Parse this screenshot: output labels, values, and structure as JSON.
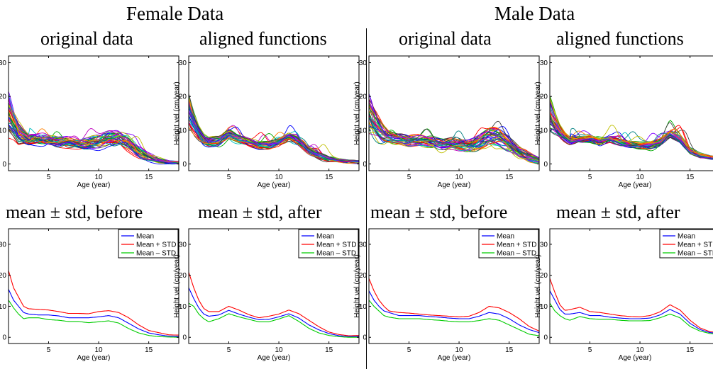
{
  "groups": [
    {
      "title": "Female Data"
    },
    {
      "title": "Male Data"
    }
  ],
  "panel_titles": {
    "original": "original data",
    "aligned": "aligned functions",
    "before": "mean ± std, before",
    "after": "mean ± std, after"
  },
  "legend_labels": [
    "Mean",
    "Mean + STD",
    "Mean – STD"
  ],
  "colors": {
    "mean": "#0000ff",
    "plus": "#ff0000",
    "minus": "#00cc00"
  },
  "chart_data": [
    {
      "type": "line",
      "id": "female-original",
      "group": "Female Data",
      "xlabel": "Age (year)",
      "ylabel": "Height vel (cm/year)",
      "xlim": [
        1,
        18
      ],
      "ylim": [
        -2,
        32
      ],
      "xticks": [
        5,
        10,
        15
      ],
      "yticks": [
        0,
        10,
        20,
        30
      ],
      "series_description": "54 individual velocity curves",
      "x": [
        1,
        1.5,
        2,
        2.5,
        3,
        4,
        5,
        6,
        7,
        8,
        9,
        10,
        11,
        12,
        13,
        14,
        15,
        16,
        17,
        18
      ],
      "base": [
        15,
        12,
        9,
        8,
        7,
        7,
        7,
        6.5,
        6.5,
        6,
        6,
        6.5,
        7.5,
        7.5,
        6,
        3.5,
        2,
        1,
        0.5,
        0.3
      ],
      "spread": [
        7,
        5,
        4,
        2.5,
        2,
        1.8,
        1.8,
        1.8,
        1.8,
        1.8,
        2,
        2.5,
        2.5,
        2.5,
        2.5,
        2,
        1.5,
        1,
        0.6,
        0.5
      ],
      "legend": false
    },
    {
      "type": "line",
      "id": "female-aligned",
      "group": "Female Data",
      "xlabel": "Age (year)",
      "ylabel": "Height vel (cm/year)",
      "xlim": [
        1,
        18
      ],
      "ylim": [
        -2,
        32
      ],
      "xticks": [
        5,
        10,
        15
      ],
      "yticks": [
        0,
        10,
        20,
        30
      ],
      "series_description": "54 aligned velocity curves",
      "x": [
        1,
        1.5,
        2,
        2.5,
        3,
        4,
        5,
        6,
        7,
        8,
        9,
        10,
        11,
        12,
        13,
        14,
        15,
        16,
        17,
        18
      ],
      "base": [
        16,
        12,
        9,
        7,
        6.5,
        7,
        9,
        7.5,
        6.5,
        5.5,
        5.5,
        6.5,
        8,
        6.5,
        4,
        2.5,
        1.5,
        1,
        0.7,
        0.6
      ],
      "spread": [
        5,
        3.5,
        2.5,
        2,
        1.5,
        1.3,
        1.3,
        1.3,
        1.3,
        1.2,
        1.2,
        1.3,
        1.3,
        1.3,
        1.2,
        1,
        0.8,
        0.6,
        0.5,
        0.5
      ],
      "legend": false
    },
    {
      "type": "line",
      "id": "male-original",
      "group": "Male Data",
      "xlabel": "Age (year)",
      "ylabel": "Height vel (cm/year)",
      "xlim": [
        1,
        18
      ],
      "ylim": [
        -2,
        32
      ],
      "xticks": [
        5,
        10,
        15
      ],
      "yticks": [
        0,
        10,
        20,
        30
      ],
      "series_description": "39 individual velocity curves",
      "x": [
        1,
        1.5,
        2,
        2.5,
        3,
        4,
        5,
        6,
        7,
        8,
        9,
        10,
        11,
        12,
        13,
        14,
        15,
        16,
        17,
        18
      ],
      "base": [
        15,
        12,
        10,
        8.5,
        8,
        7.5,
        7,
        7,
        6.5,
        6,
        6,
        5.5,
        5.5,
        6.5,
        8,
        8,
        6,
        3.5,
        2,
        1
      ],
      "spread": [
        7,
        5,
        4,
        3,
        2,
        1.8,
        1.8,
        1.8,
        1.8,
        1.8,
        1.8,
        1.8,
        2,
        2.5,
        3,
        3,
        2.5,
        2,
        1.5,
        1
      ],
      "legend": false
    },
    {
      "type": "line",
      "id": "male-aligned",
      "group": "Male Data",
      "xlabel": "Age (year)",
      "ylabel": "Height vel (cm/year)",
      "xlim": [
        1,
        18
      ],
      "ylim": [
        -2,
        32
      ],
      "xticks": [
        5,
        10,
        15
      ],
      "yticks": [
        0,
        10,
        20,
        30
      ],
      "series_description": "39 aligned velocity curves",
      "x": [
        1,
        1.5,
        2,
        2.5,
        3,
        4,
        5,
        6,
        7,
        8,
        9,
        10,
        11,
        12,
        13,
        14,
        15,
        16,
        17,
        18
      ],
      "base": [
        15,
        12,
        9.5,
        8,
        7,
        7.5,
        7.5,
        6.5,
        7.5,
        6.5,
        6,
        5.5,
        5.5,
        6.5,
        9,
        7.5,
        4,
        2.5,
        2,
        1.8
      ],
      "spread": [
        6,
        4,
        2.5,
        1.8,
        1.5,
        1.2,
        1.2,
        1.2,
        1.2,
        1.2,
        1.2,
        1.2,
        1.2,
        1.3,
        1.5,
        1.3,
        1,
        0.8,
        0.6,
        0.6
      ],
      "legend": false
    },
    {
      "type": "line",
      "id": "female-before",
      "group": "Female Data",
      "xlabel": "Age (year)",
      "ylabel": "Height vel (cm/year)",
      "xlim": [
        1,
        18
      ],
      "ylim": [
        -2,
        35
      ],
      "xticks": [
        5,
        10,
        15
      ],
      "yticks": [
        0,
        10,
        20,
        30
      ],
      "x": [
        1,
        1.5,
        2,
        2.5,
        3,
        4,
        5,
        6,
        7,
        8,
        9,
        10,
        11,
        12,
        13,
        14,
        15,
        16,
        17,
        18
      ],
      "series": [
        {
          "name": "Mean",
          "values": [
            15.5,
            12,
            10,
            8,
            7.5,
            7.2,
            7.2,
            6.9,
            6.3,
            6.3,
            6.3,
            6.6,
            7,
            6.3,
            4.5,
            2.7,
            1.4,
            0.8,
            0.4,
            0.3
          ]
        },
        {
          "name": "Mean + STD",
          "values": [
            21.5,
            16,
            13,
            10,
            9.2,
            9,
            8.8,
            8.3,
            7.7,
            7.7,
            7.6,
            8.3,
            8.6,
            8,
            6.3,
            4,
            2.2,
            1.5,
            0.8,
            0.7
          ]
        },
        {
          "name": "Mean – STD",
          "values": [
            12,
            9.5,
            7.5,
            6,
            6.3,
            6.3,
            5.7,
            5.5,
            5.1,
            5.1,
            4.7,
            5,
            5.3,
            4.6,
            2.8,
            1.4,
            0.6,
            0.2,
            0.1,
            0
          ]
        }
      ],
      "legend": true
    },
    {
      "type": "line",
      "id": "female-after",
      "group": "Female Data",
      "xlabel": "Age (year)",
      "ylabel": "Height vel (cm/year)",
      "xlim": [
        1,
        18
      ],
      "ylim": [
        -2,
        35
      ],
      "xticks": [
        5,
        10,
        15
      ],
      "yticks": [
        0,
        10,
        20,
        30
      ],
      "x": [
        1,
        1.5,
        2,
        2.5,
        3,
        4,
        5,
        6,
        7,
        8,
        9,
        10,
        11,
        12,
        13,
        14,
        15,
        16,
        17,
        18
      ],
      "series": [
        {
          "name": "Mean",
          "values": [
            16,
            12.5,
            9.5,
            7.5,
            6.8,
            7.2,
            8.7,
            7.5,
            6.5,
            5.7,
            5.8,
            6.6,
            7.6,
            6.2,
            4,
            2.4,
            1.2,
            0.5,
            0.3,
            0.3
          ]
        },
        {
          "name": "Mean + STD",
          "values": [
            21,
            16,
            12,
            9.3,
            8.3,
            8.3,
            10,
            8.8,
            7.3,
            6.3,
            6.8,
            7.5,
            8.8,
            7.6,
            5.5,
            3.4,
            1.7,
            0.9,
            0.5,
            0.6
          ]
        },
        {
          "name": "Mean – STD",
          "values": [
            11,
            10,
            7.5,
            6,
            5,
            6,
            7.6,
            6.6,
            5.8,
            5,
            5,
            5.9,
            7,
            5.1,
            2.9,
            1.4,
            0.6,
            0.2,
            0,
            0
          ]
        }
      ],
      "legend": true
    },
    {
      "type": "line",
      "id": "male-before",
      "group": "Male Data",
      "xlabel": "Age (year)",
      "ylabel": "Height vel (cm/year)",
      "xlim": [
        1,
        18
      ],
      "ylim": [
        -2,
        35
      ],
      "xticks": [
        5,
        10,
        15
      ],
      "yticks": [
        0,
        10,
        20,
        30
      ],
      "x": [
        1,
        1.5,
        2,
        2.5,
        3,
        4,
        5,
        6,
        7,
        8,
        9,
        10,
        11,
        12,
        13,
        14,
        15,
        16,
        17,
        18
      ],
      "series": [
        {
          "name": "Mean",
          "values": [
            15,
            12,
            10,
            8.5,
            8,
            7,
            7,
            7,
            6.7,
            6.5,
            6.2,
            6,
            6,
            6.8,
            8,
            7.5,
            6,
            4,
            2.5,
            1.5
          ]
        },
        {
          "name": "Mean + STD",
          "values": [
            19,
            15,
            12,
            10,
            8.5,
            8,
            7.8,
            7.5,
            7.2,
            7,
            6.8,
            6.6,
            6.8,
            8,
            10,
            9.5,
            8,
            6,
            3.5,
            2
          ]
        },
        {
          "name": "Mean – STD",
          "values": [
            12,
            10,
            8.5,
            7,
            6.5,
            6,
            6,
            6,
            5.7,
            5.5,
            5.2,
            5,
            5,
            5.4,
            6,
            5.5,
            4,
            2.5,
            1,
            0.5
          ]
        }
      ],
      "legend": true
    },
    {
      "type": "line",
      "id": "male-after",
      "group": "Male Data",
      "xlabel": "Age (year)",
      "ylabel": "Height vel (cm/year)",
      "xlim": [
        1,
        18
      ],
      "ylim": [
        -2,
        35
      ],
      "xticks": [
        5,
        10,
        15
      ],
      "yticks": [
        0,
        10,
        20,
        30
      ],
      "x": [
        1,
        1.5,
        2,
        2.5,
        3,
        4,
        5,
        6,
        7,
        8,
        9,
        10,
        11,
        12,
        13,
        14,
        15,
        16,
        17,
        18
      ],
      "series": [
        {
          "name": "Mean",
          "values": [
            15,
            12,
            9,
            7.5,
            7.5,
            8,
            7,
            7,
            6.5,
            6.2,
            6,
            6,
            6.2,
            7.2,
            9,
            7.5,
            4.5,
            2.5,
            1.5,
            1.3
          ]
        },
        {
          "name": "Mean + STD",
          "values": [
            19,
            14.5,
            10.5,
            8.7,
            8.9,
            9.7,
            8.3,
            8,
            7.5,
            7,
            6.7,
            6.6,
            7,
            8.2,
            10.5,
            8.8,
            5.5,
            3,
            1.8,
            1.5
          ]
        },
        {
          "name": "Mean – STD",
          "values": [
            11,
            8.5,
            7,
            6,
            5.5,
            6.7,
            6,
            5.8,
            5.8,
            5.5,
            5.3,
            5.3,
            5.4,
            6.3,
            7.5,
            6.3,
            3.5,
            2,
            1.2,
            1
          ]
        }
      ],
      "legend": true
    }
  ]
}
